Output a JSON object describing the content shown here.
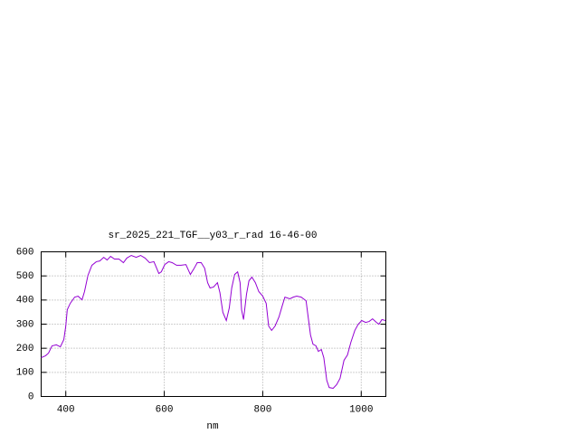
{
  "chart_data": {
    "type": "line",
    "title": "sr_2025_221_TGF__y03_r_rad 16-46-00",
    "xlabel": "nm",
    "x": [
      350,
      359,
      365,
      372,
      381,
      389,
      396,
      400,
      403,
      409,
      418,
      425,
      433,
      438,
      445,
      453,
      462,
      469,
      477,
      484,
      491,
      499,
      508,
      517,
      524,
      533,
      543,
      552,
      561,
      570,
      579,
      589,
      594,
      601,
      609,
      616,
      625,
      634,
      644,
      653,
      660,
      667,
      675,
      682,
      688,
      693,
      700,
      708,
      713,
      719,
      726,
      732,
      737,
      743,
      749,
      754,
      757,
      761,
      767,
      772,
      778,
      785,
      792,
      800,
      807,
      812,
      818,
      825,
      833,
      840,
      845,
      855,
      862,
      869,
      878,
      888,
      891,
      897,
      902,
      908,
      913,
      919,
      924,
      930,
      935,
      943,
      950,
      957,
      965,
      972,
      979,
      987,
      994,
      1001,
      1009,
      1016,
      1023,
      1031,
      1036,
      1042,
      1049
    ],
    "values": [
      161,
      169,
      180,
      210,
      214,
      206,
      236,
      292,
      360,
      386,
      412,
      416,
      401,
      435,
      502,
      544,
      559,
      562,
      577,
      566,
      581,
      570,
      570,
      555,
      574,
      585,
      577,
      585,
      574,
      555,
      559,
      510,
      517,
      547,
      559,
      555,
      544,
      544,
      547,
      506,
      529,
      555,
      555,
      532,
      472,
      450,
      454,
      472,
      431,
      349,
      315,
      367,
      450,
      506,
      517,
      472,
      360,
      319,
      424,
      480,
      495,
      472,
      435,
      416,
      386,
      292,
      274,
      292,
      330,
      379,
      412,
      405,
      412,
      416,
      412,
      397,
      349,
      255,
      217,
      210,
      187,
      195,
      161,
      67,
      37,
      34,
      49,
      75,
      150,
      172,
      225,
      274,
      300,
      315,
      307,
      311,
      322,
      307,
      300,
      319,
      315
    ],
    "color": "#9400d3",
    "xlim": [
      350,
      1050
    ],
    "ylim": [
      0,
      600
    ],
    "xticks": [
      400,
      600,
      800,
      1000
    ],
    "yticks": [
      0,
      100,
      200,
      300,
      400,
      500,
      600
    ],
    "grid": true
  }
}
